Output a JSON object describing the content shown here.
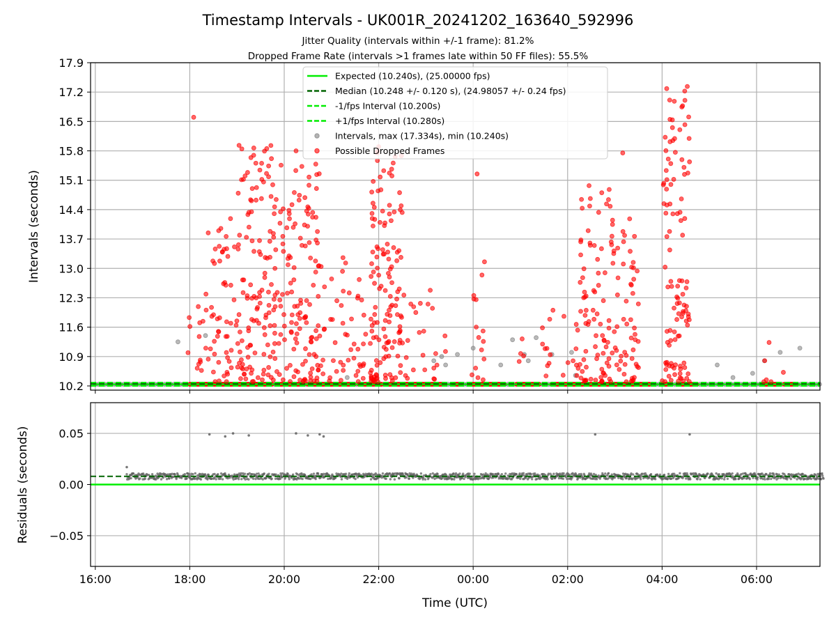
{
  "chart_data": [
    {
      "type": "scatter",
      "title": "Timestamp Intervals - UK001R_20241202_163640_592996",
      "subtitle_1": "Jitter Quality (intervals within +/-1 frame): 81.2%",
      "subtitle_2": "Dropped Frame Rate (intervals >1 frames late within 50 FF files): 55.5%",
      "ylabel": "Intervals (seconds)",
      "ylim": [
        10.1,
        17.9
      ],
      "yticks": [
        "10.2",
        "10.9",
        "11.6",
        "12.3",
        "13.0",
        "13.7",
        "14.4",
        "15.1",
        "15.8",
        "16.5",
        "17.2",
        "17.9"
      ],
      "grid": true,
      "legend_position": "upper center",
      "legend": [
        {
          "label": "Expected (10.240s), (25.00000 fps)",
          "style": "solid",
          "color": "#00ee00"
        },
        {
          "label": "Median (10.248 +/- 0.120 s), (24.98057 +/- 0.24 fps)",
          "style": "dashed",
          "color": "#006400"
        },
        {
          "label": "-1/fps Interval (10.200s)",
          "style": "dashed",
          "color": "#00ee00"
        },
        {
          "label": "+1/fps Interval (10.280s)",
          "style": "dashed",
          "color": "#00ee00"
        },
        {
          "label": "Intervals, max (17.334s), min (10.240s)",
          "style": "marker",
          "color": "#808080"
        },
        {
          "label": "Possible Dropped Frames",
          "style": "marker",
          "color": "#ff0000"
        }
      ],
      "reference_lines": {
        "expected": 10.24,
        "median": 10.248,
        "lower": 10.2,
        "upper": 10.28
      },
      "clusters": [
        {
          "start": "17:55",
          "end": "18:20",
          "count": 12,
          "ymin": 10.4,
          "ymax": 12.1
        },
        {
          "start": "18:20",
          "end": "19:00",
          "count": 55,
          "ymin": 10.3,
          "ymax": 14.2
        },
        {
          "start": "19:00",
          "end": "20:00",
          "count": 150,
          "ymin": 10.3,
          "ymax": 16.0
        },
        {
          "start": "20:00",
          "end": "20:45",
          "count": 110,
          "ymin": 10.3,
          "ymax": 15.5
        },
        {
          "start": "20:45",
          "end": "21:40",
          "count": 45,
          "ymin": 10.3,
          "ymax": 13.4
        },
        {
          "start": "21:40",
          "end": "22:00",
          "count": 20,
          "ymin": 10.3,
          "ymax": 12.2
        },
        {
          "start": "21:50",
          "end": "22:30",
          "count": 120,
          "ymin": 10.3,
          "ymax": 16.0
        },
        {
          "start": "22:30",
          "end": "23:30",
          "count": 25,
          "ymin": 10.3,
          "ymax": 12.6
        },
        {
          "start": "23:55",
          "end": "00:15",
          "count": 15,
          "ymin": 10.3,
          "ymax": 13.4
        },
        {
          "start": "00:40",
          "end": "01:30",
          "count": 6,
          "ymin": 10.5,
          "ymax": 12.0
        },
        {
          "start": "01:30",
          "end": "02:15",
          "count": 18,
          "ymin": 10.4,
          "ymax": 12.1
        },
        {
          "start": "02:15",
          "end": "03:00",
          "count": 90,
          "ymin": 10.3,
          "ymax": 15.0
        },
        {
          "start": "03:00",
          "end": "03:30",
          "count": 50,
          "ymin": 10.3,
          "ymax": 14.4
        },
        {
          "start": "04:00",
          "end": "04:35",
          "count": 110,
          "ymin": 10.3,
          "ymax": 17.33
        },
        {
          "start": "06:05",
          "end": "06:45",
          "count": 6,
          "ymin": 10.3,
          "ymax": 11.3
        }
      ],
      "special_points": [
        {
          "x": "18:05",
          "y": 16.6
        },
        {
          "x": "04:32",
          "y": 17.334
        },
        {
          "x": "20:15",
          "y": 15.8
        },
        {
          "x": "22:00",
          "y": 15.9
        },
        {
          "x": "00:05",
          "y": 15.25
        },
        {
          "x": "03:10",
          "y": 15.75
        },
        {
          "x": "04:10",
          "y": 16.55
        }
      ],
      "gray_points": [
        {
          "x": "17:45",
          "y": 11.25
        },
        {
          "x": "18:20",
          "y": 11.4
        },
        {
          "x": "21:20",
          "y": 10.4
        },
        {
          "x": "23:10",
          "y": 10.8
        },
        {
          "x": "23:20",
          "y": 10.9
        },
        {
          "x": "23:25",
          "y": 10.7
        },
        {
          "x": "23:40",
          "y": 10.95
        },
        {
          "x": "00:00",
          "y": 11.1
        },
        {
          "x": "00:35",
          "y": 10.7
        },
        {
          "x": "00:50",
          "y": 11.3
        },
        {
          "x": "01:05",
          "y": 10.95
        },
        {
          "x": "01:10",
          "y": 10.8
        },
        {
          "x": "01:20",
          "y": 11.35
        },
        {
          "x": "01:40",
          "y": 10.95
        },
        {
          "x": "02:10",
          "y": 10.45
        },
        {
          "x": "02:05",
          "y": 11.0
        },
        {
          "x": "05:10",
          "y": 10.7
        },
        {
          "x": "05:30",
          "y": 10.4
        },
        {
          "x": "05:55",
          "y": 10.5
        },
        {
          "x": "06:10",
          "y": 10.8
        },
        {
          "x": "06:55",
          "y": 11.1
        },
        {
          "x": "06:30",
          "y": 11.0
        }
      ],
      "baseline_segments_red": [
        {
          "start": "18:00",
          "end": "19:45"
        },
        {
          "start": "19:50",
          "end": "20:25"
        },
        {
          "start": "20:30",
          "end": "21:30"
        },
        {
          "start": "21:35",
          "end": "22:05"
        },
        {
          "start": "22:10",
          "end": "23:25"
        },
        {
          "start": "23:35",
          "end": "23:45"
        },
        {
          "start": "23:55",
          "end": "00:40"
        },
        {
          "start": "00:55",
          "end": "01:25"
        },
        {
          "start": "01:40",
          "end": "02:20"
        },
        {
          "start": "02:25",
          "end": "03:45"
        },
        {
          "start": "04:00",
          "end": "04:10"
        },
        {
          "start": "04:20",
          "end": "04:45"
        },
        {
          "start": "06:10",
          "end": "06:30"
        },
        {
          "start": "06:35",
          "end": "06:50"
        }
      ]
    },
    {
      "type": "scatter",
      "xlabel": "Time (UTC)",
      "ylabel": "Residuals (seconds)",
      "ylim": [
        -0.08,
        0.08
      ],
      "yticks": [
        "−0.05",
        "0.00",
        "0.05"
      ],
      "xticks": [
        "16:00",
        "18:00",
        "20:00",
        "22:00",
        "00:00",
        "02:00",
        "04:00",
        "06:00"
      ],
      "grid": true,
      "reference_lines": {
        "expected": 0.0,
        "median": 0.008
      },
      "band": {
        "start": "16:40",
        "end": "07:25",
        "center": 0.008,
        "spread": 0.003
      },
      "outliers": [
        {
          "x": "16:40",
          "y": 0.017
        },
        {
          "x": "18:25",
          "y": 0.049
        },
        {
          "x": "18:45",
          "y": 0.047
        },
        {
          "x": "18:55",
          "y": 0.05
        },
        {
          "x": "19:15",
          "y": 0.048
        },
        {
          "x": "20:15",
          "y": 0.05
        },
        {
          "x": "20:30",
          "y": 0.048
        },
        {
          "x": "20:45",
          "y": 0.049
        },
        {
          "x": "20:50",
          "y": 0.047
        },
        {
          "x": "02:35",
          "y": 0.049
        },
        {
          "x": "04:35",
          "y": 0.049
        }
      ]
    }
  ]
}
